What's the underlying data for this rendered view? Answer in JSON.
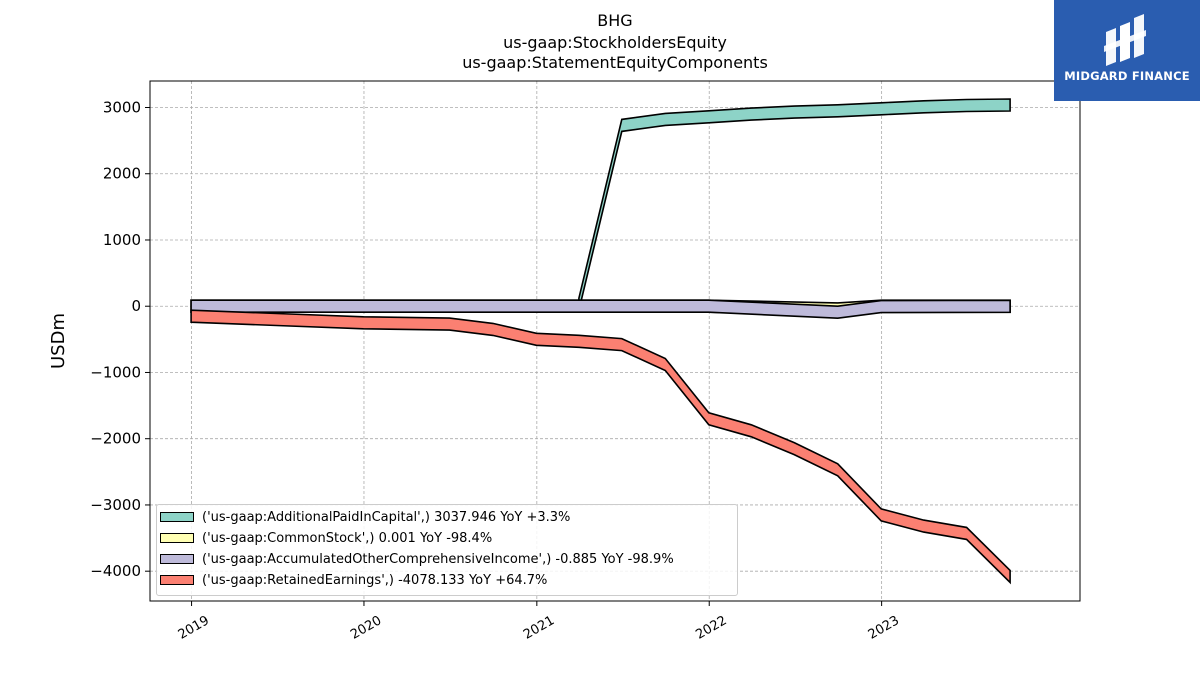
{
  "title": {
    "line1": "BHG",
    "line2": "us-gaap:StockholdersEquity",
    "line3": "us-gaap:StatementEquityComponents"
  },
  "logo": {
    "text": "MIDGARD FINANCE",
    "color": "#2a5db0"
  },
  "chart_data": {
    "type": "area",
    "ylabel": "USDm",
    "xlabel": "",
    "ylim": [
      -4450,
      3400
    ],
    "xlim": [
      "2018-10-05",
      "2024-02-25"
    ],
    "yticks": [
      3000,
      2000,
      1000,
      0,
      -1000,
      -2000,
      -3000,
      -4000
    ],
    "ytick_labels": [
      "3000",
      "2000",
      "1000",
      "0",
      "−1000",
      "−2000",
      "−3000",
      "−4000"
    ],
    "xticks": [
      "2019-01-01",
      "2020-01-01",
      "2021-01-01",
      "2022-01-01",
      "2023-01-01"
    ],
    "xtick_labels": [
      "2019",
      "2020",
      "2021",
      "2022",
      "2023"
    ],
    "grid": true,
    "legend_position": "lower-left",
    "series": [
      {
        "name": "('us-gaap:AdditionalPaidInCapital',) 3037.946 YoY +3.3%",
        "color": "#8dd3c7",
        "x": [
          "2021-03-31",
          "2021-06-30",
          "2021-09-30",
          "2021-12-31",
          "2022-03-31",
          "2022-06-30",
          "2022-09-30",
          "2022-12-31",
          "2023-03-31",
          "2023-06-30",
          "2023-09-30"
        ],
        "values": [
          30,
          2730,
          2820,
          2860,
          2900,
          2930,
          2950,
          2980,
          3010,
          3030,
          3038
        ]
      },
      {
        "name": "('us-gaap:CommonStock',) 0.001 YoY -98.4%",
        "color": "#ffffb3",
        "x": [
          "2018-12-31",
          "2019-12-31",
          "2020-12-31",
          "2021-12-31",
          "2022-09-30",
          "2022-12-31",
          "2023-09-30"
        ],
        "values": [
          0,
          0,
          0,
          0,
          -40,
          0,
          0.001
        ]
      },
      {
        "name": "('us-gaap:AccumulatedOtherComprehensiveIncome',) -0.885 YoY -98.9%",
        "color": "#bebada",
        "x": [
          "2018-12-31",
          "2019-12-31",
          "2020-12-31",
          "2021-12-31",
          "2022-09-30",
          "2022-12-31",
          "2023-09-30"
        ],
        "values": [
          0,
          0,
          0,
          0,
          -90,
          -5,
          -0.885
        ]
      },
      {
        "name": "('us-gaap:RetainedEarnings',) -4078.133 YoY +64.7%",
        "color": "#fb8072",
        "x": [
          "2018-12-31",
          "2019-06-30",
          "2019-12-31",
          "2020-06-30",
          "2020-09-30",
          "2020-12-31",
          "2021-03-31",
          "2021-06-30",
          "2021-09-30",
          "2021-12-31",
          "2022-03-31",
          "2022-06-30",
          "2022-09-30",
          "2022-12-31",
          "2023-03-31",
          "2023-06-30",
          "2023-09-30"
        ],
        "values": [
          -150,
          -200,
          -250,
          -270,
          -350,
          -500,
          -530,
          -580,
          -880,
          -1700,
          -1880,
          -2150,
          -2470,
          -3150,
          -3320,
          -3430,
          -4078
        ]
      }
    ]
  }
}
